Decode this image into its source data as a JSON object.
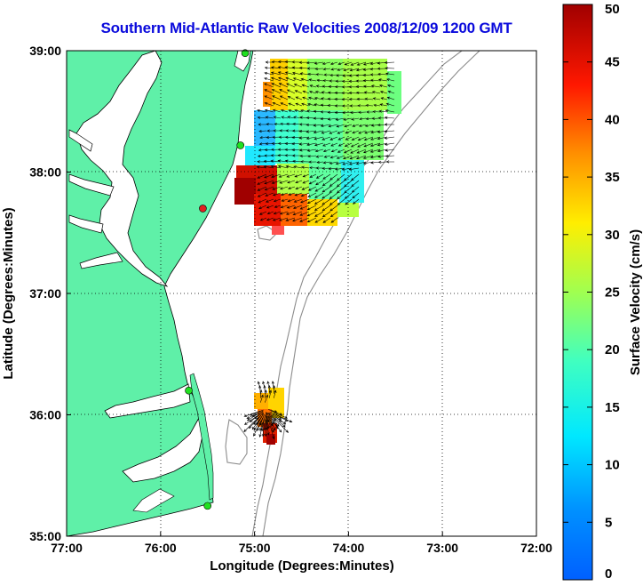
{
  "title": "Southern Mid-Atlantic Raw Velocities 2008/12/09 1200 GMT",
  "map": {
    "lon_range": [
      -77,
      -72
    ],
    "lat_range": [
      35,
      39
    ],
    "x_axis": {
      "label": "Longitude (Degrees:Minutes)",
      "ticks": [
        {
          "value": -77,
          "label": "77:00"
        },
        {
          "value": -76,
          "label": "76:00"
        },
        {
          "value": -75,
          "label": "75:00"
        },
        {
          "value": -74,
          "label": "74:00"
        },
        {
          "value": -73,
          "label": "73:00"
        },
        {
          "value": -72,
          "label": "72:00"
        }
      ]
    },
    "y_axis": {
      "label": "Latitude (Degrees:Minutes)",
      "ticks": [
        {
          "value": 35,
          "label": "35:00"
        },
        {
          "value": 36,
          "label": "36:00"
        },
        {
          "value": 37,
          "label": "37:00"
        },
        {
          "value": 38,
          "label": "38:00"
        },
        {
          "value": 39,
          "label": "39:00"
        }
      ]
    },
    "grid": "dotted",
    "land_color": "#5ff0a8",
    "coast_color": "#000000",
    "isobath_color": "#8c8c8c",
    "water_color": "#ffffff",
    "stations": [
      {
        "lon": -75.1,
        "lat": 38.98,
        "color": "#20e020"
      },
      {
        "lon": -75.15,
        "lat": 38.22,
        "color": "#20e020"
      },
      {
        "lon": -75.55,
        "lat": 37.7,
        "color": "#e02020"
      },
      {
        "lon": -75.7,
        "lat": 36.2,
        "color": "#20e020"
      },
      {
        "lon": -75.5,
        "lat": 35.25,
        "color": "#20e020"
      }
    ],
    "velocity_fields": [
      {
        "region": "north",
        "lon_range": [
          -75.3,
          -73.55
        ],
        "lat_range": [
          37.55,
          38.92
        ]
      },
      {
        "region": "south",
        "lon_range": [
          -75.05,
          -74.7
        ],
        "lat_range": [
          35.55,
          36.22
        ]
      }
    ]
  },
  "colorbar": {
    "label": "Surface Velocity (cm/s)",
    "min": 0,
    "max": 50,
    "ticks": [
      {
        "value": 0,
        "label": "0"
      },
      {
        "value": 5,
        "label": "5"
      },
      {
        "value": 10,
        "label": "10"
      },
      {
        "value": 15,
        "label": "15"
      },
      {
        "value": 20,
        "label": "20"
      },
      {
        "value": 25,
        "label": "25"
      },
      {
        "value": 30,
        "label": "30"
      },
      {
        "value": 35,
        "label": "35"
      },
      {
        "value": 40,
        "label": "40"
      },
      {
        "value": 45,
        "label": "45"
      },
      {
        "value": 50,
        "label": "50"
      }
    ]
  }
}
